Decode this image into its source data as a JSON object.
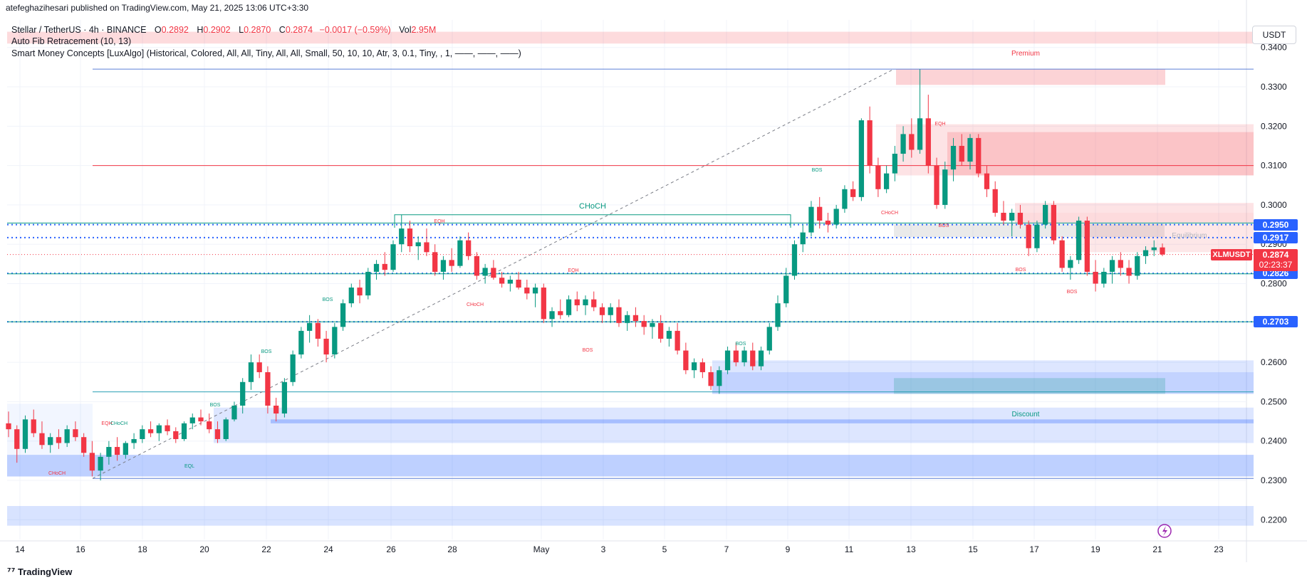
{
  "header": {
    "publisher": "atefeghazihesari published on TradingView.com, May 21, 2025 13:06 UTC+3:30"
  },
  "legend": {
    "symbol": "Stellar / TetherUS · 4h · BINANCE",
    "open_label": "O",
    "open": "0.2892",
    "high_label": "H",
    "high": "0.2902",
    "low_label": "L",
    "low": "0.2870",
    "close_label": "C",
    "close": "0.2874",
    "change": "−0.0017 (−0.59%)",
    "vol_label": "Vol",
    "vol": "2.95M",
    "indicator1": "Auto Fib Retracement (10, 13)",
    "indicator2": "Smart Money Concepts [LuxAlgo] (Historical, Colored, All, All, Tiny, All, All, Small, 50, 10, 10, Atr, 3, 0.1, Tiny, , 1, ——, ——, ——)"
  },
  "currency_button": "USDT",
  "footer": {
    "logo_text": "TradingView"
  },
  "colors": {
    "up": "#089981",
    "down": "#f23645",
    "blue_zone": "#2962ff",
    "red_zone": "#f23645",
    "dotted_blue": "#2962ff"
  },
  "price_badges": [
    {
      "value": "0.2950",
      "color": "#2962ff"
    },
    {
      "value": "0.2917",
      "color": "#2962ff"
    },
    {
      "value": "0.2826",
      "color": "#2962ff"
    },
    {
      "value": "0.2703",
      "color": "#2962ff"
    }
  ],
  "current_price": {
    "symbol": "XLMUSDT",
    "value": "0.2874",
    "countdown": "02:23:37"
  },
  "chart_data": {
    "type": "candlestick",
    "x_axis_labels": [
      "14",
      "16",
      "18",
      "20",
      "22",
      "24",
      "26",
      "28",
      "May",
      "3",
      "5",
      "7",
      "9",
      "11",
      "13",
      "15",
      "17",
      "19",
      "21",
      "23"
    ],
    "y_axis_labels": [
      "0.2200",
      "0.2300",
      "0.2400",
      "0.2500",
      "0.2600",
      "0.2700",
      "0.2800",
      "0.2900",
      "0.3000",
      "0.3100",
      "0.3200",
      "0.3300",
      "0.3400"
    ],
    "ylim": [
      0.2165,
      0.3425
    ],
    "annotations": [
      {
        "text": "Premium",
        "color": "#f23645"
      },
      {
        "text": "Equilibrium",
        "color": "#b2b5be"
      },
      {
        "text": "Discount",
        "color": "#089981"
      },
      {
        "text": "CHoCH",
        "color": "#089981"
      },
      {
        "text": "EQH",
        "color": "#f23645"
      },
      {
        "text": "EQL",
        "color": "#089981"
      },
      {
        "text": "BOS",
        "color": "#089981"
      },
      {
        "text": "BOS",
        "color": "#f23645"
      },
      {
        "text": "CHoCH",
        "color": "#f23645"
      }
    ],
    "candles_ohlc_approx": [
      [
        0.2445,
        0.2475,
        0.241,
        0.243
      ],
      [
        0.243,
        0.244,
        0.2345,
        0.238
      ],
      [
        0.238,
        0.2465,
        0.237,
        0.2455
      ],
      [
        0.2455,
        0.248,
        0.241,
        0.242
      ],
      [
        0.242,
        0.245,
        0.238,
        0.239
      ],
      [
        0.239,
        0.242,
        0.237,
        0.241
      ],
      [
        0.241,
        0.243,
        0.238,
        0.2395
      ],
      [
        0.2395,
        0.244,
        0.2385,
        0.243
      ],
      [
        0.243,
        0.245,
        0.24,
        0.241
      ],
      [
        0.241,
        0.242,
        0.236,
        0.237
      ],
      [
        0.237,
        0.24,
        0.231,
        0.2325
      ],
      [
        0.2325,
        0.237,
        0.23,
        0.236
      ],
      [
        0.236,
        0.24,
        0.234,
        0.2385
      ],
      [
        0.2385,
        0.241,
        0.235,
        0.2365
      ],
      [
        0.2365,
        0.24,
        0.2355,
        0.2395
      ],
      [
        0.2395,
        0.242,
        0.238,
        0.2405
      ],
      [
        0.2405,
        0.244,
        0.2395,
        0.243
      ],
      [
        0.243,
        0.245,
        0.241,
        0.242
      ],
      [
        0.242,
        0.2445,
        0.24,
        0.244
      ],
      [
        0.244,
        0.2455,
        0.2415,
        0.2425
      ],
      [
        0.2425,
        0.2435,
        0.2395,
        0.2405
      ],
      [
        0.2405,
        0.245,
        0.24,
        0.2445
      ],
      [
        0.2445,
        0.247,
        0.243,
        0.246
      ],
      [
        0.246,
        0.248,
        0.244,
        0.245
      ],
      [
        0.245,
        0.247,
        0.242,
        0.243
      ],
      [
        0.243,
        0.245,
        0.2395,
        0.2405
      ],
      [
        0.2405,
        0.246,
        0.24,
        0.2455
      ],
      [
        0.2455,
        0.25,
        0.245,
        0.249
      ],
      [
        0.249,
        0.256,
        0.247,
        0.255
      ],
      [
        0.255,
        0.262,
        0.253,
        0.26
      ],
      [
        0.26,
        0.262,
        0.256,
        0.2575
      ],
      [
        0.2575,
        0.259,
        0.247,
        0.249
      ],
      [
        0.249,
        0.251,
        0.245,
        0.247
      ],
      [
        0.247,
        0.256,
        0.246,
        0.255
      ],
      [
        0.255,
        0.263,
        0.254,
        0.262
      ],
      [
        0.262,
        0.269,
        0.261,
        0.268
      ],
      [
        0.268,
        0.272,
        0.265,
        0.27
      ],
      [
        0.27,
        0.271,
        0.264,
        0.266
      ],
      [
        0.266,
        0.268,
        0.26,
        0.262
      ],
      [
        0.262,
        0.27,
        0.261,
        0.269
      ],
      [
        0.269,
        0.276,
        0.268,
        0.275
      ],
      [
        0.275,
        0.28,
        0.274,
        0.279
      ],
      [
        0.279,
        0.281,
        0.275,
        0.277
      ],
      [
        0.277,
        0.284,
        0.276,
        0.283
      ],
      [
        0.283,
        0.286,
        0.281,
        0.285
      ],
      [
        0.285,
        0.288,
        0.282,
        0.2835
      ],
      [
        0.2835,
        0.291,
        0.283,
        0.29
      ],
      [
        0.29,
        0.2975,
        0.288,
        0.294
      ],
      [
        0.294,
        0.296,
        0.288,
        0.2895
      ],
      [
        0.2895,
        0.292,
        0.286,
        0.2905
      ],
      [
        0.2905,
        0.294,
        0.287,
        0.288
      ],
      [
        0.288,
        0.29,
        0.282,
        0.283
      ],
      [
        0.283,
        0.287,
        0.281,
        0.286
      ],
      [
        0.286,
        0.289,
        0.283,
        0.2845
      ],
      [
        0.2845,
        0.292,
        0.284,
        0.291
      ],
      [
        0.291,
        0.293,
        0.286,
        0.287
      ],
      [
        0.287,
        0.288,
        0.281,
        0.282
      ],
      [
        0.282,
        0.285,
        0.28,
        0.284
      ],
      [
        0.284,
        0.286,
        0.281,
        0.2815
      ],
      [
        0.2815,
        0.283,
        0.279,
        0.28
      ],
      [
        0.28,
        0.282,
        0.278,
        0.281
      ],
      [
        0.281,
        0.283,
        0.2785,
        0.279
      ],
      [
        0.279,
        0.281,
        0.276,
        0.2775
      ],
      [
        0.2775,
        0.28,
        0.274,
        0.279
      ],
      [
        0.279,
        0.28,
        0.27,
        0.271
      ],
      [
        0.271,
        0.274,
        0.269,
        0.273
      ],
      [
        0.273,
        0.276,
        0.271,
        0.272
      ],
      [
        0.272,
        0.277,
        0.2715,
        0.276
      ],
      [
        0.276,
        0.278,
        0.273,
        0.2745
      ],
      [
        0.2745,
        0.277,
        0.272,
        0.276
      ],
      [
        0.276,
        0.278,
        0.273,
        0.274
      ],
      [
        0.274,
        0.275,
        0.27,
        0.272
      ],
      [
        0.272,
        0.275,
        0.27,
        0.274
      ],
      [
        0.274,
        0.276,
        0.269,
        0.27
      ],
      [
        0.27,
        0.273,
        0.268,
        0.272
      ],
      [
        0.272,
        0.274,
        0.269,
        0.2705
      ],
      [
        0.2705,
        0.272,
        0.267,
        0.269
      ],
      [
        0.269,
        0.271,
        0.266,
        0.27
      ],
      [
        0.27,
        0.272,
        0.265,
        0.266
      ],
      [
        0.266,
        0.269,
        0.264,
        0.268
      ],
      [
        0.268,
        0.27,
        0.262,
        0.263
      ],
      [
        0.263,
        0.265,
        0.257,
        0.258
      ],
      [
        0.258,
        0.261,
        0.256,
        0.26
      ],
      [
        0.26,
        0.261,
        0.256,
        0.2575
      ],
      [
        0.2575,
        0.259,
        0.253,
        0.254
      ],
      [
        0.254,
        0.259,
        0.252,
        0.258
      ],
      [
        0.258,
        0.264,
        0.257,
        0.263
      ],
      [
        0.263,
        0.265,
        0.259,
        0.26
      ],
      [
        0.26,
        0.264,
        0.259,
        0.263
      ],
      [
        0.263,
        0.265,
        0.258,
        0.259
      ],
      [
        0.259,
        0.264,
        0.258,
        0.263
      ],
      [
        0.263,
        0.27,
        0.262,
        0.269
      ],
      [
        0.269,
        0.277,
        0.268,
        0.275
      ],
      [
        0.275,
        0.284,
        0.274,
        0.282
      ],
      [
        0.282,
        0.291,
        0.281,
        0.29
      ],
      [
        0.29,
        0.295,
        0.288,
        0.293
      ],
      [
        0.293,
        0.301,
        0.292,
        0.2995
      ],
      [
        0.2995,
        0.302,
        0.294,
        0.296
      ],
      [
        0.296,
        0.298,
        0.293,
        0.295
      ],
      [
        0.295,
        0.3,
        0.294,
        0.299
      ],
      [
        0.299,
        0.305,
        0.298,
        0.304
      ],
      [
        0.304,
        0.306,
        0.301,
        0.302
      ],
      [
        0.302,
        0.322,
        0.301,
        0.3215
      ],
      [
        0.3215,
        0.325,
        0.308,
        0.31
      ],
      [
        0.31,
        0.312,
        0.302,
        0.304
      ],
      [
        0.304,
        0.31,
        0.303,
        0.308
      ],
      [
        0.308,
        0.315,
        0.306,
        0.313
      ],
      [
        0.313,
        0.32,
        0.311,
        0.318
      ],
      [
        0.318,
        0.322,
        0.312,
        0.314
      ],
      [
        0.314,
        0.3345,
        0.313,
        0.322
      ],
      [
        0.322,
        0.328,
        0.308,
        0.31
      ],
      [
        0.31,
        0.312,
        0.299,
        0.3
      ],
      [
        0.3,
        0.311,
        0.299,
        0.309
      ],
      [
        0.309,
        0.317,
        0.306,
        0.315
      ],
      [
        0.315,
        0.318,
        0.31,
        0.311
      ],
      [
        0.311,
        0.318,
        0.309,
        0.317
      ],
      [
        0.317,
        0.318,
        0.307,
        0.308
      ],
      [
        0.308,
        0.31,
        0.302,
        0.304
      ],
      [
        0.304,
        0.306,
        0.297,
        0.298
      ],
      [
        0.298,
        0.301,
        0.295,
        0.296
      ],
      [
        0.296,
        0.299,
        0.292,
        0.298
      ],
      [
        0.298,
        0.3,
        0.294,
        0.295
      ],
      [
        0.295,
        0.296,
        0.287,
        0.289
      ],
      [
        0.289,
        0.296,
        0.288,
        0.295
      ],
      [
        0.295,
        0.301,
        0.294,
        0.3
      ],
      [
        0.3,
        0.301,
        0.29,
        0.291
      ],
      [
        0.291,
        0.292,
        0.283,
        0.284
      ],
      [
        0.284,
        0.287,
        0.281,
        0.286
      ],
      [
        0.286,
        0.297,
        0.285,
        0.296
      ],
      [
        0.296,
        0.297,
        0.282,
        0.283
      ],
      [
        0.283,
        0.286,
        0.278,
        0.28
      ],
      [
        0.28,
        0.284,
        0.279,
        0.283
      ],
      [
        0.283,
        0.287,
        0.28,
        0.286
      ],
      [
        0.286,
        0.288,
        0.282,
        0.284
      ],
      [
        0.284,
        0.286,
        0.28,
        0.282
      ],
      [
        0.282,
        0.288,
        0.281,
        0.287
      ],
      [
        0.287,
        0.2895,
        0.285,
        0.2885
      ],
      [
        0.2885,
        0.291,
        0.287,
        0.2892
      ],
      [
        0.2892,
        0.2902,
        0.287,
        0.2874
      ]
    ]
  }
}
